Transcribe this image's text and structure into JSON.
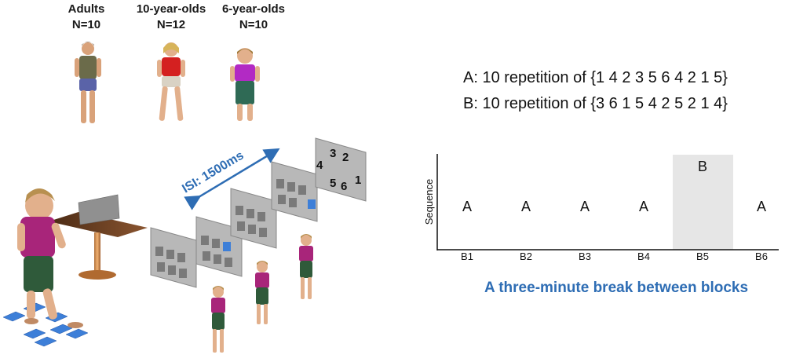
{
  "groups": [
    {
      "name": "Adults",
      "n": "N=10",
      "shirt": "#6b6b4a",
      "shorts": "#5a63a8"
    },
    {
      "name": "10-year-olds",
      "n": "N=12",
      "shirt": "#d42020",
      "shorts": "#d9d2c4"
    },
    {
      "name": "6-year-olds",
      "n": "N=10",
      "shirt": "#b22ac4",
      "shorts": "#2f6a55"
    }
  ],
  "isi_label": "ISI: 1500ms",
  "screen_digits": [
    "3",
    "2",
    "4",
    "5",
    "6",
    "1"
  ],
  "sequences": {
    "a": "A: 10 repetition of {1 4 2 3 5 6 4 2 1 5}",
    "b": "B: 10 repetition of {3 6 1 5 4 2 5 2 1 4}"
  },
  "chart_data": {
    "type": "table",
    "ylabel": "Sequence",
    "categories": [
      "B1",
      "B2",
      "B3",
      "B4",
      "B5",
      "B6"
    ],
    "values": [
      "A",
      "A",
      "A",
      "A",
      "B",
      "A"
    ],
    "highlight": "B5",
    "highlight_color": "#e6e6e6"
  },
  "caption": "A three-minute break between blocks",
  "colors": {
    "accent": "#2e6db4",
    "shirt_child": "#a8257a",
    "pants_child": "#2f5a3a",
    "floor_pad": "#3d7fd8"
  }
}
